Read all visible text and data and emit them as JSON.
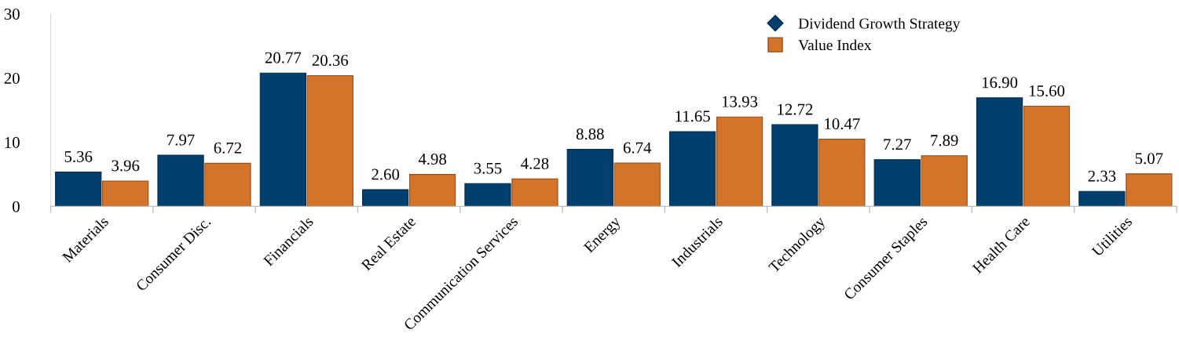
{
  "chart_data": {
    "type": "bar",
    "categories": [
      "Materials",
      "Consumer Disc.",
      "Financials",
      "Real Estate",
      "Communication Services",
      "Energy",
      "Industrials",
      "Technology",
      "Consumer Staples",
      "Health Care",
      "Utilities"
    ],
    "series": [
      {
        "name": "Dividend Growth Strategy",
        "color": "#003f6e",
        "values": [
          5.36,
          7.97,
          20.77,
          2.6,
          3.55,
          8.88,
          11.65,
          12.72,
          7.27,
          16.9,
          2.33
        ],
        "value_labels": [
          "5.36",
          "7.97",
          "20.77",
          "2.60",
          "3.55",
          "8.88",
          "11.65",
          "12.72",
          "7.27",
          "16.90",
          "2.33"
        ]
      },
      {
        "name": "Value Index",
        "color": "#d4732a",
        "values": [
          3.96,
          6.72,
          20.36,
          4.98,
          4.28,
          6.74,
          13.93,
          10.47,
          7.89,
          15.6,
          5.07
        ],
        "value_labels": [
          "3.96",
          "6.72",
          "20.36",
          "4.98",
          "4.28",
          "6.74",
          "13.93",
          "10.47",
          "7.89",
          "15.60",
          "5.07"
        ]
      }
    ],
    "ylim": [
      0,
      30
    ],
    "yticks": [
      0,
      10,
      20,
      30
    ],
    "grid": false,
    "legend": "top right"
  }
}
